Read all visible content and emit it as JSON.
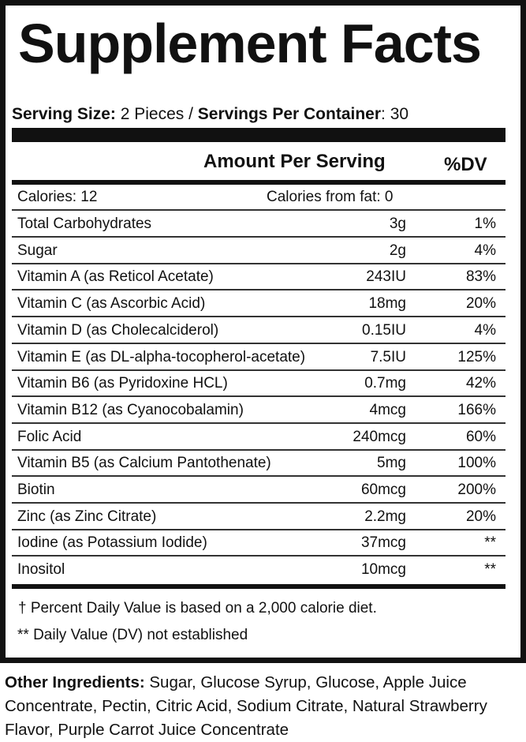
{
  "title": "Supplement Facts",
  "serving": {
    "size_label": "Serving Size:",
    "size_value": " 2 Pieces / ",
    "per_container_label": "Servings Per Container",
    "per_container_value": ": 30"
  },
  "header": {
    "amount": "Amount Per Serving",
    "dv": "%DV"
  },
  "calories": {
    "label": "Calories: 12",
    "fat": "Calories from fat: 0"
  },
  "rows": [
    {
      "name": "Total Carbohydrates",
      "amount": "3g",
      "dv": "1%"
    },
    {
      "name": "Sugar",
      "amount": "2g",
      "dv": "4%"
    },
    {
      "name": "Vitamin A (as Reticol Acetate)",
      "amount": "243IU",
      "dv": "83%"
    },
    {
      "name": "Vitamin C (as Ascorbic Acid)",
      "amount": "18mg",
      "dv": "20%"
    },
    {
      "name": "Vitamin D (as Cholecalciderol)",
      "amount": "0.15IU",
      "dv": "4%"
    },
    {
      "name": "Vitamin E (as DL-alpha-tocopherol-acetate)",
      "amount": "7.5IU",
      "dv": "125%"
    },
    {
      "name": "Vitamin B6 (as Pyridoxine HCL)",
      "amount": "0.7mg",
      "dv": "42%"
    },
    {
      "name": "Vitamin B12 (as Cyanocobalamin)",
      "amount": "4mcg",
      "dv": "166%"
    },
    {
      "name": "Folic Acid",
      "amount": "240mcg",
      "dv": "60%"
    },
    {
      "name": "Vitamin B5 (as Calcium Pantothenate)",
      "amount": "5mg",
      "dv": "100%"
    },
    {
      "name": "Biotin",
      "amount": "60mcg",
      "dv": "200%"
    },
    {
      "name": "Zinc (as Zinc Citrate)",
      "amount": "2.2mg",
      "dv": "20%"
    },
    {
      "name": "Iodine (as Potassium Iodide)",
      "amount": "37mcg",
      "dv": "**"
    },
    {
      "name": "Inositol",
      "amount": "10mcg",
      "dv": "**"
    }
  ],
  "footnotes": {
    "dagger": "†  Percent Daily Value is based on a 2,000 calorie diet.",
    "not_established": "** Daily Value (DV) not established"
  },
  "ingredients": {
    "label": "Other Ingredients:",
    "text": " Sugar, Glucose Syrup, Glucose, Apple Juice Concentrate, Pectin, Citric Acid, Sodium Citrate, Natural Strawberry Flavor, Purple Carrot Juice Concentrate"
  }
}
